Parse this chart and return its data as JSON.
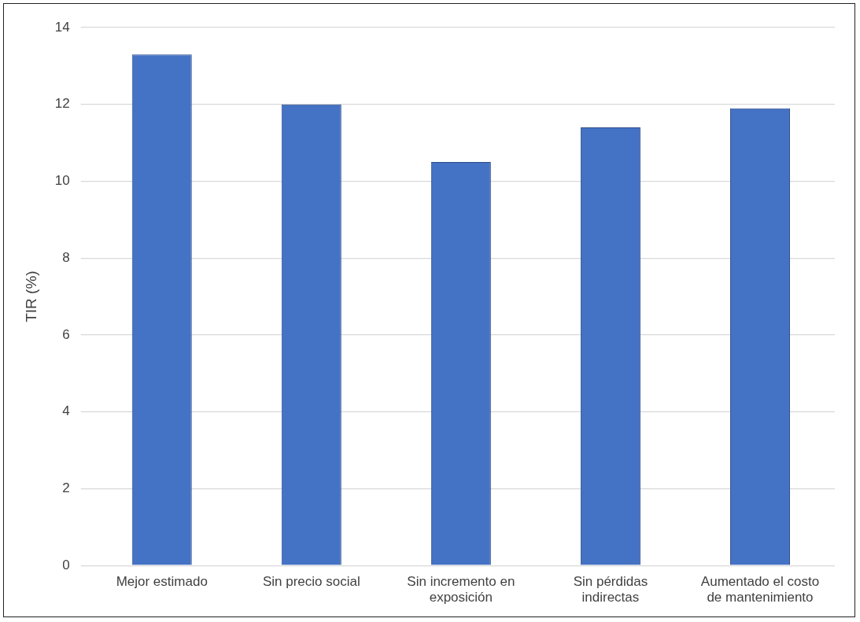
{
  "chart_data": {
    "type": "bar",
    "ylabel": "TIR (%)",
    "categories": [
      "Mejor estimado",
      "Sin precio social",
      "Sin incremento en exposición",
      "Sin pérdidas indirectas",
      "Aumentado el costo de mantenimiento"
    ],
    "values": [
      13.3,
      12.0,
      10.5,
      11.4,
      11.9
    ],
    "color": "#4472c4",
    "ylim": [
      0,
      14
    ],
    "yticks": [
      0,
      2,
      4,
      6,
      8,
      10,
      12,
      14
    ],
    "grid": "y",
    "legend": false
  }
}
